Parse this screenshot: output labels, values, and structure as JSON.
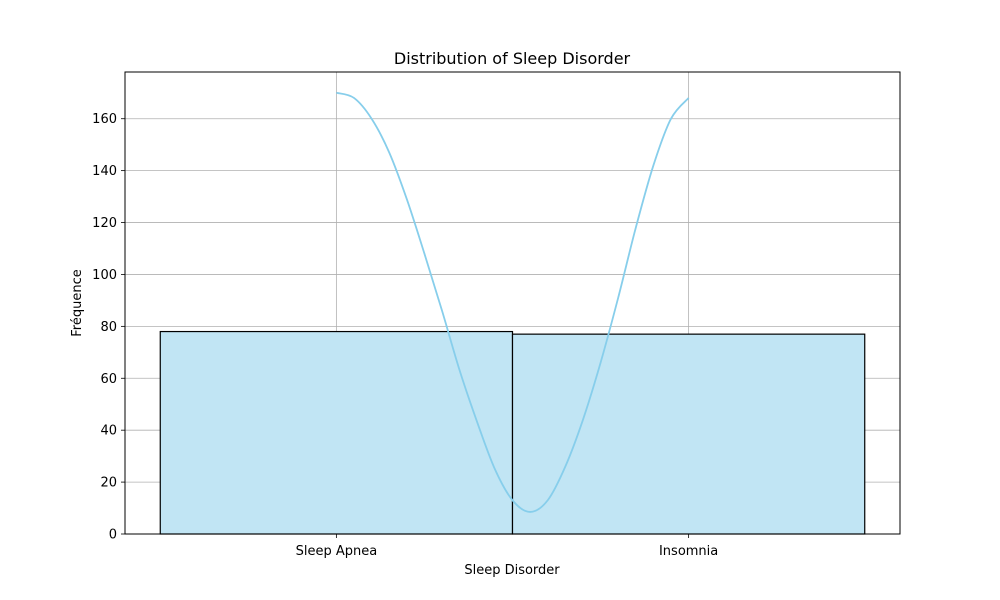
{
  "chart_data": {
    "type": "bar",
    "title": "Distribution of Sleep Disorder",
    "xlabel": "Sleep Disorder",
    "ylabel": "Fréquence",
    "categories": [
      "Sleep Apnea",
      "Insomnia"
    ],
    "values": [
      78,
      77
    ],
    "ylim": [
      0,
      178
    ],
    "yticks": [
      0,
      20,
      40,
      60,
      80,
      100,
      120,
      140,
      160
    ],
    "grid": true,
    "kde_curve": {
      "x": [
        0,
        0.05,
        0.1,
        0.15,
        0.2,
        0.25,
        0.3,
        0.35,
        0.4,
        0.45,
        0.5,
        0.55,
        0.6,
        0.65,
        0.7,
        0.75,
        0.8,
        0.85,
        0.9,
        0.95,
        1.0
      ],
      "y": [
        170,
        168,
        160,
        147,
        129,
        108,
        86,
        63,
        43,
        25,
        13,
        8.5,
        13,
        26,
        44,
        66,
        91,
        118,
        142,
        160,
        168
      ]
    },
    "colors": {
      "bar_fill": "#c1e5f4",
      "bar_edge": "#000000",
      "kde_line": "#87ceeb",
      "grid": "#b0b0b0"
    }
  }
}
